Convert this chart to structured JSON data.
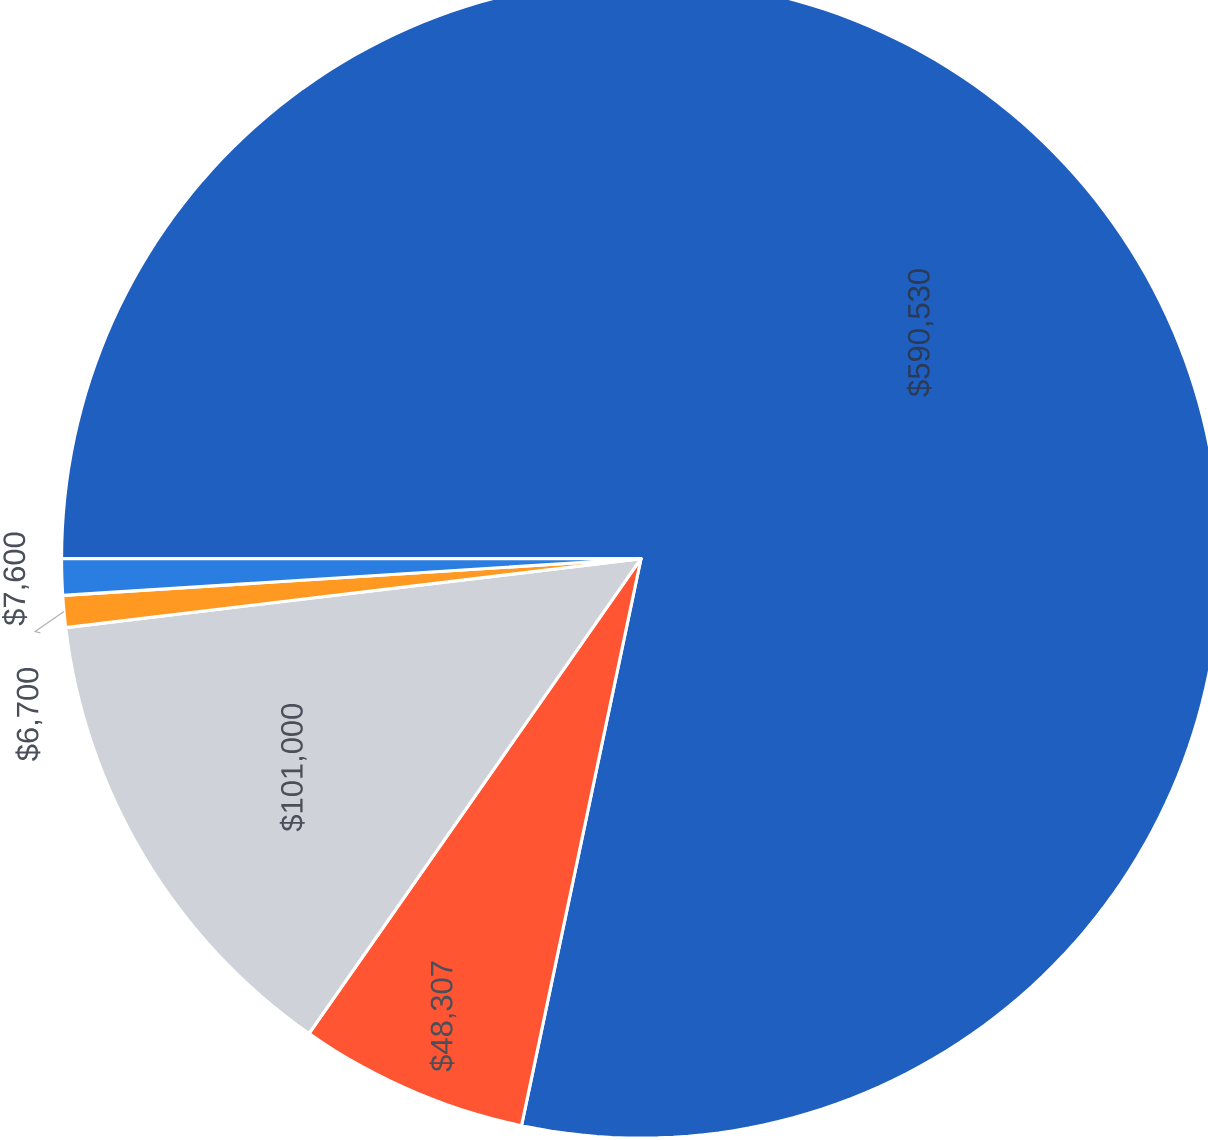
{
  "chart_data": {
    "type": "pie",
    "categories": [
      null,
      null,
      null,
      null,
      null
    ],
    "values": [
      590530,
      48307,
      101000,
      6700,
      7600
    ],
    "colors": [
      "#1f5fc0",
      "#ff5533",
      "#cfd3d9",
      "#ff9922",
      "#2a7de1"
    ],
    "value_labels": [
      "$590,530",
      "$48,307",
      "$101,000",
      "$6,700",
      "$7,600"
    ]
  }
}
